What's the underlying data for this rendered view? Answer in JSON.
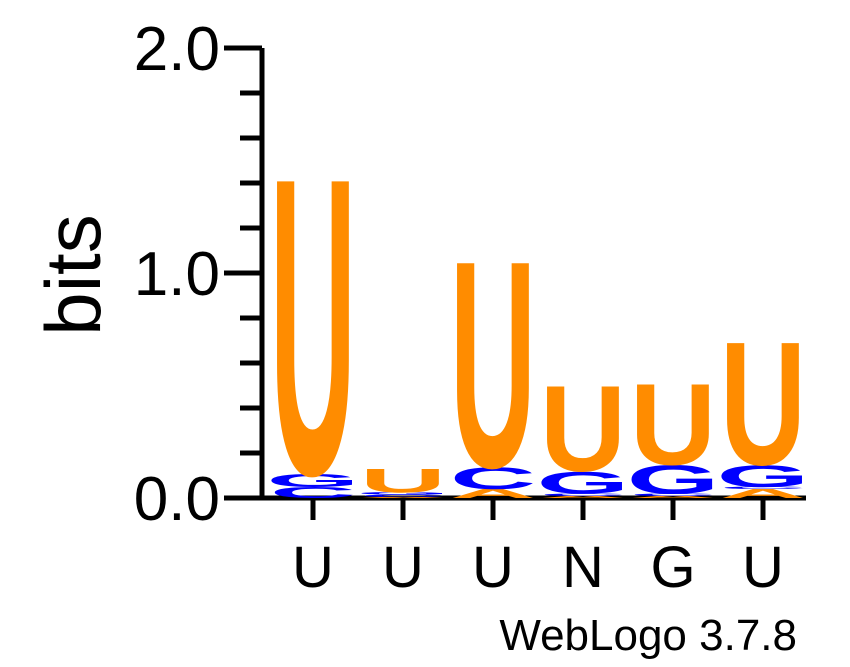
{
  "chart_data": {
    "type": "sequence-logo",
    "ylabel": "bits",
    "ylim": [
      0,
      2
    ],
    "y_ticks": [
      "0.0",
      "1.0",
      "2.0"
    ],
    "y_tick_values": [
      0,
      1,
      2
    ],
    "categories": [
      "U",
      "U",
      "U",
      "N",
      "G",
      "U"
    ],
    "footer": "WebLogo 3.7.8",
    "colors": {
      "U": "#ff8c00",
      "C": "#0000ff",
      "G": "#0000ff",
      "A": "#ff8c00"
    },
    "columns": [
      {
        "label": "U",
        "stack": [
          {
            "letter": "C",
            "bits": 0.05
          },
          {
            "letter": "G",
            "bits": 0.06
          },
          {
            "letter": "U",
            "bits": 1.35
          }
        ]
      },
      {
        "label": "U",
        "stack": [
          {
            "letter": "A",
            "bits": 0.005
          },
          {
            "letter": "C",
            "bits": 0.01
          },
          {
            "letter": "G",
            "bits": 0.01
          },
          {
            "letter": "U",
            "bits": 0.11
          }
        ]
      },
      {
        "label": "U",
        "stack": [
          {
            "letter": "A",
            "bits": 0.04
          },
          {
            "letter": "C",
            "bits": 0.1
          },
          {
            "letter": "U",
            "bits": 0.94
          }
        ]
      },
      {
        "label": "N",
        "stack": [
          {
            "letter": "A",
            "bits": 0.01
          },
          {
            "letter": "C",
            "bits": 0.01
          },
          {
            "letter": "G",
            "bits": 0.1
          },
          {
            "letter": "U",
            "bits": 0.39
          }
        ]
      },
      {
        "label": "G",
        "stack": [
          {
            "letter": "A",
            "bits": 0.01
          },
          {
            "letter": "C",
            "bits": 0.01
          },
          {
            "letter": "G",
            "bits": 0.13
          },
          {
            "letter": "U",
            "bits": 0.37
          }
        ]
      },
      {
        "label": "U",
        "stack": [
          {
            "letter": "A",
            "bits": 0.04
          },
          {
            "letter": "C",
            "bits": 0.01
          },
          {
            "letter": "G",
            "bits": 0.1
          },
          {
            "letter": "U",
            "bits": 0.56
          }
        ]
      }
    ]
  }
}
